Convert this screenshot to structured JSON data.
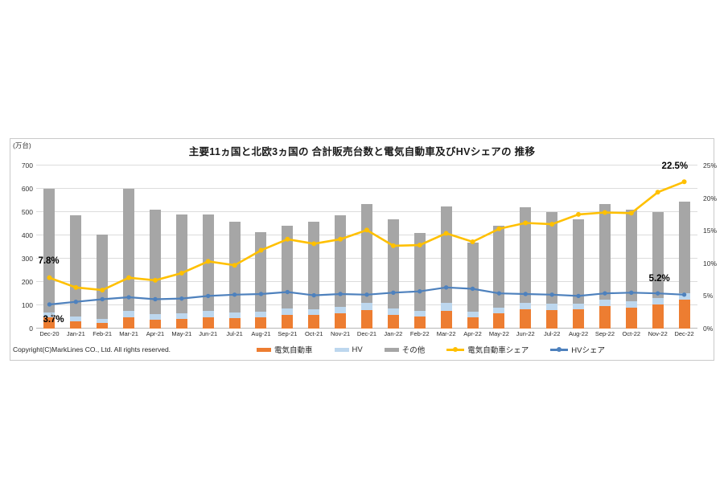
{
  "chart_data": {
    "type": "bar",
    "subtype": "stacked-bars-with-lines-combo",
    "title": "主要11ヵ国と北欧3ヵ国の 合計販売台数と電気自動車及びHVシェアの 推移",
    "unit_label": "(万台)",
    "categories": [
      "Dec-20",
      "Jan-21",
      "Feb-21",
      "Mar-21",
      "Apr-21",
      "May-21",
      "Jun-21",
      "Jul-21",
      "Aug-21",
      "Sep-21",
      "Oct-21",
      "Nov-21",
      "Dec-21",
      "Jan-22",
      "Feb-22",
      "Mar-22",
      "Apr-22",
      "May-22",
      "Jun-22",
      "Jul-22",
      "Aug-22",
      "Sep-22",
      "Oct-22",
      "Nov-22",
      "Dec-22"
    ],
    "series": [
      {
        "name": "電気自動車",
        "type": "bar",
        "axis": "left",
        "color": "#ED7D31",
        "values": [
          47,
          31,
          24,
          47,
          38,
          42,
          50,
          45,
          50,
          60,
          60,
          66,
          81,
          60,
          52,
          77,
          49,
          67,
          84,
          80,
          82,
          95,
          90,
          105,
          123
        ]
      },
      {
        "name": "HV",
        "type": "bar",
        "axis": "left",
        "color": "#BDD7EE",
        "values": [
          22,
          20,
          18,
          29,
          23,
          23,
          25,
          24,
          22,
          25,
          23,
          26,
          28,
          26,
          23,
          33,
          23,
          24,
          28,
          26,
          24,
          29,
          28,
          27,
          28
        ]
      },
      {
        "name": "その他",
        "type": "bar",
        "axis": "left",
        "color": "#A6A6A6",
        "values": [
          531,
          434,
          363,
          524,
          449,
          425,
          415,
          391,
          343,
          355,
          377,
          393,
          426,
          384,
          335,
          415,
          298,
          349,
          408,
          394,
          364,
          411,
          392,
          368,
          394
        ]
      },
      {
        "name": "電気自動車シェア",
        "type": "line",
        "axis": "right",
        "color": "#FFC000",
        "values": [
          7.8,
          6.3,
          5.9,
          7.8,
          7.4,
          8.5,
          10.3,
          9.7,
          12.0,
          13.7,
          13.0,
          13.7,
          15.1,
          12.7,
          12.8,
          14.6,
          13.3,
          15.3,
          16.2,
          16.0,
          17.5,
          17.8,
          17.7,
          20.9,
          22.5
        ]
      },
      {
        "name": "HVシェア",
        "type": "line",
        "axis": "right",
        "color": "#4E81BD",
        "values": [
          3.7,
          4.1,
          4.5,
          4.8,
          4.5,
          4.6,
          5.0,
          5.2,
          5.3,
          5.6,
          5.1,
          5.3,
          5.2,
          5.5,
          5.7,
          6.3,
          6.1,
          5.4,
          5.3,
          5.2,
          5.0,
          5.4,
          5.5,
          5.4,
          5.2
        ]
      }
    ],
    "bar_totals": [
      600,
      485,
      405,
      600,
      510,
      490,
      490,
      460,
      415,
      440,
      460,
      485,
      535,
      470,
      410,
      525,
      370,
      440,
      520,
      500,
      470,
      535,
      510,
      500,
      545
    ],
    "left_axis": {
      "min": 0,
      "max": 700,
      "tick_step": 100,
      "ticks": [
        "0",
        "100",
        "200",
        "300",
        "400",
        "500",
        "600",
        "700"
      ]
    },
    "right_axis": {
      "min": 0,
      "max": 25,
      "tick_step": 5,
      "ticks": [
        "0%",
        "5%",
        "10%",
        "15%",
        "20%",
        "25%"
      ]
    },
    "grid": "horizontal-on",
    "legend_position": "bottom",
    "annotations": [
      {
        "text": "7.8%",
        "series": "電気自動車シェア",
        "index": 0
      },
      {
        "text": "3.7%",
        "series": "HVシェア",
        "index": 0
      },
      {
        "text": "22.5%",
        "series": "電気自動車シェア",
        "index": 24
      },
      {
        "text": "5.2%",
        "series": "HVシェア",
        "index": 24
      }
    ]
  },
  "footer": {
    "copyright": "Copyright(C)MarkLines CO., Ltd. All rights reserved."
  }
}
